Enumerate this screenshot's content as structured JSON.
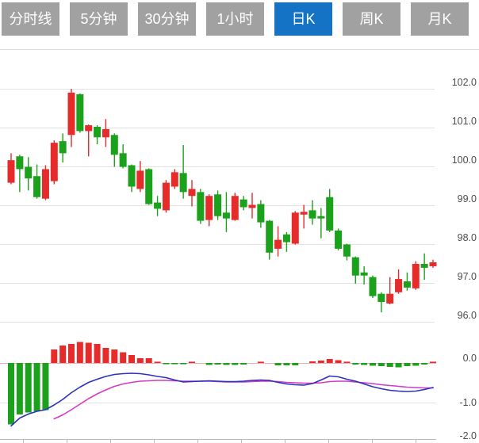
{
  "tabs": {
    "items": [
      {
        "key": "tab-minute-line",
        "label": "分时线",
        "active": false
      },
      {
        "key": "tab-5min",
        "label": "5分钟",
        "active": false
      },
      {
        "key": "tab-30min",
        "label": "30分钟",
        "active": false
      },
      {
        "key": "tab-1hour",
        "label": "1小时",
        "active": false
      },
      {
        "key": "tab-daily-k",
        "label": "日K",
        "active": true
      },
      {
        "key": "tab-weekly-k",
        "label": "周K",
        "active": false
      },
      {
        "key": "tab-monthly-k",
        "label": "月K",
        "active": false
      }
    ]
  },
  "colors": {
    "up_red": "#e62b2b",
    "down_green": "#1ca11c",
    "dif_line": "#2b32be",
    "dea_line": "#d23ac8",
    "tab_bg": "#a1a1a1",
    "tab_active_bg": "#1473c4",
    "tab_text": "#ffffff",
    "grid": "#e3e3e3",
    "border": "#dddddd",
    "axis_line": "#bbbbbb",
    "zero_line": "#f0aab8",
    "axis_text": "#4c4c4c"
  },
  "chart_data": {
    "type": "candlestick",
    "title": "",
    "legend": [],
    "grid": "horizontal-only",
    "price_axis": {
      "side": "right",
      "labels": [
        "102.0",
        "101.0",
        "100.0",
        "99.0",
        "98.0",
        "97.0",
        "96.0"
      ],
      "values": [
        102.0,
        101.0,
        100.0,
        99.0,
        98.0,
        97.0,
        96.0
      ],
      "range": [
        96.0,
        102.0
      ]
    },
    "indicator_axis": {
      "side": "right",
      "labels": [
        "0.0",
        "-1.0",
        "-2.0"
      ],
      "values": [
        0.0,
        -1.0,
        -2.0
      ],
      "range": [
        -2.0,
        0.0
      ]
    },
    "candle_format": "[open, high, low, close]",
    "candles": [
      [
        99.58,
        100.34,
        99.54,
        100.16
      ],
      [
        100.26,
        100.3,
        99.34,
        99.93
      ],
      [
        99.99,
        100.24,
        99.38,
        99.69
      ],
      [
        99.75,
        100.05,
        99.17,
        99.21
      ],
      [
        99.17,
        100.03,
        99.13,
        99.93
      ],
      [
        99.62,
        100.67,
        99.54,
        100.61
      ],
      [
        100.65,
        100.85,
        100.1,
        100.34
      ],
      [
        100.81,
        102.0,
        100.5,
        101.9
      ],
      [
        101.86,
        101.88,
        100.87,
        100.91
      ],
      [
        100.91,
        101.08,
        100.26,
        101.06
      ],
      [
        101.02,
        101.06,
        100.57,
        100.75
      ],
      [
        100.75,
        101.22,
        100.5,
        100.96
      ],
      [
        100.81,
        100.85,
        99.99,
        100.3
      ],
      [
        100.34,
        100.57,
        99.95,
        99.99
      ],
      [
        100.03,
        100.05,
        99.34,
        99.48
      ],
      [
        99.42,
        100.14,
        99.34,
        99.89
      ],
      [
        99.93,
        99.95,
        99.01,
        99.03
      ],
      [
        99.07,
        99.24,
        98.72,
        98.91
      ],
      [
        98.87,
        99.65,
        98.81,
        99.58
      ],
      [
        99.48,
        99.93,
        99.42,
        99.85
      ],
      [
        99.83,
        100.55,
        99.17,
        99.34
      ],
      [
        99.24,
        99.65,
        98.97,
        99.42
      ],
      [
        99.34,
        99.42,
        98.52,
        98.6
      ],
      [
        98.62,
        99.28,
        98.46,
        99.24
      ],
      [
        99.28,
        99.38,
        98.62,
        98.72
      ],
      [
        98.81,
        99.34,
        98.31,
        98.66
      ],
      [
        98.62,
        99.32,
        98.6,
        99.24
      ],
      [
        99.15,
        99.24,
        98.87,
        98.95
      ],
      [
        98.93,
        99.32,
        98.66,
        99.01
      ],
      [
        99.03,
        99.13,
        98.42,
        98.56
      ],
      [
        98.6,
        98.62,
        97.6,
        97.78
      ],
      [
        97.88,
        98.46,
        97.68,
        98.11
      ],
      [
        98.25,
        98.31,
        97.8,
        98.05
      ],
      [
        98.01,
        98.85,
        97.99,
        98.81
      ],
      [
        98.76,
        99.01,
        98.4,
        98.83
      ],
      [
        98.87,
        99.13,
        98.5,
        98.66
      ],
      [
        98.72,
        98.93,
        98.15,
        98.66
      ],
      [
        99.21,
        99.42,
        98.31,
        98.35
      ],
      [
        98.35,
        98.4,
        97.84,
        97.88
      ],
      [
        97.99,
        98.01,
        97.58,
        97.68
      ],
      [
        97.66,
        97.68,
        96.98,
        97.19
      ],
      [
        97.27,
        97.43,
        96.96,
        97.19
      ],
      [
        97.15,
        97.19,
        96.61,
        96.66
      ],
      [
        96.72,
        96.76,
        96.24,
        96.51
      ],
      [
        96.47,
        97.15,
        96.45,
        96.72
      ],
      [
        96.76,
        97.35,
        96.72,
        97.1
      ],
      [
        97.04,
        97.27,
        96.8,
        96.88
      ],
      [
        96.86,
        97.56,
        96.82,
        97.49
      ],
      [
        97.49,
        97.76,
        97.08,
        97.39
      ],
      [
        97.43,
        97.6,
        97.39,
        97.53
      ]
    ],
    "macd": {
      "histogram": [
        -1.55,
        -1.3,
        -1.25,
        -1.22,
        -1.19,
        0.34,
        0.44,
        0.48,
        0.53,
        0.51,
        0.48,
        0.38,
        0.34,
        0.27,
        0.2,
        0.12,
        0.12,
        0.03,
        -0.03,
        -0.03,
        -0.03,
        0.02,
        0,
        -0.05,
        -0.04,
        -0.05,
        -0.05,
        -0.04,
        0,
        0.03,
        0,
        -0.06,
        -0.06,
        -0.06,
        0,
        0.04,
        0.06,
        0.1,
        0.07,
        0.03,
        -0.04,
        -0.05,
        -0.07,
        -0.08,
        -0.1,
        -0.11,
        -0.08,
        -0.07,
        -0.04,
        0.03
      ],
      "dif": [
        -1.59,
        -1.39,
        -1.29,
        -1.22,
        -1.18,
        -1.06,
        -0.92,
        -0.75,
        -0.61,
        -0.49,
        -0.41,
        -0.34,
        -0.29,
        -0.27,
        -0.26,
        -0.27,
        -0.3,
        -0.34,
        -0.37,
        -0.43,
        -0.48,
        -0.47,
        -0.46,
        -0.45,
        -0.46,
        -0.47,
        -0.47,
        -0.46,
        -0.44,
        -0.43,
        -0.44,
        -0.49,
        -0.53,
        -0.55,
        -0.56,
        -0.52,
        -0.43,
        -0.33,
        -0.35,
        -0.41,
        -0.46,
        -0.53,
        -0.6,
        -0.65,
        -0.69,
        -0.71,
        -0.72,
        -0.71,
        -0.67,
        -0.62
      ],
      "dea": [
        null,
        null,
        null,
        null,
        null,
        -1.41,
        -1.31,
        -1.18,
        -1.04,
        -0.9,
        -0.78,
        -0.68,
        -0.59,
        -0.53,
        -0.49,
        -0.46,
        -0.45,
        -0.44,
        -0.44,
        -0.45,
        -0.46,
        -0.46,
        -0.46,
        -0.46,
        -0.47,
        -0.48,
        -0.48,
        -0.48,
        -0.47,
        -0.46,
        -0.46,
        -0.47,
        -0.49,
        -0.5,
        -0.51,
        -0.51,
        -0.5,
        -0.47,
        -0.46,
        -0.46,
        -0.48,
        -0.5,
        -0.52,
        -0.55,
        -0.57,
        -0.59,
        -0.61,
        -0.62,
        -0.63,
        -0.63
      ]
    }
  }
}
